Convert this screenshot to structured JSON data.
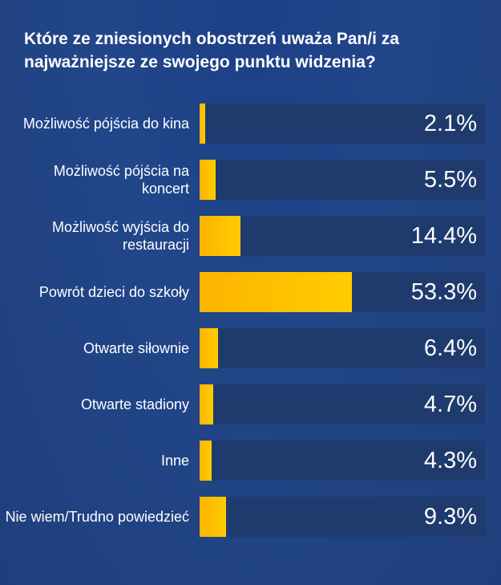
{
  "chart_data": {
    "type": "bar",
    "orientation": "horizontal",
    "title": "Które ze zniesionych obostrzeń uważa Pan/i za najważniejsze ze swojego punktu widzenia?",
    "categories": [
      "Możliwość pójścia do kina",
      "Możliwość pójścia na koncert",
      "Możliwość wyjścia do restauracji",
      "Powrót dzieci do szkoły",
      "Otwarte siłownie",
      "Otwarte stadiony",
      "Inne",
      "Nie wiem/Trudno powiedzieć"
    ],
    "values": [
      2.1,
      5.5,
      14.4,
      53.3,
      6.4,
      4.7,
      4.3,
      9.3
    ],
    "value_labels": [
      "2.1%",
      "5.5%",
      "14.4%",
      "53.3%",
      "6.4%",
      "4.7%",
      "4.3%",
      "9.3%"
    ],
    "xlim": [
      0,
      100
    ],
    "grid": false,
    "colors": {
      "bar": "#ffc400",
      "track": "#1f3a6d",
      "background": "#22468a"
    }
  }
}
